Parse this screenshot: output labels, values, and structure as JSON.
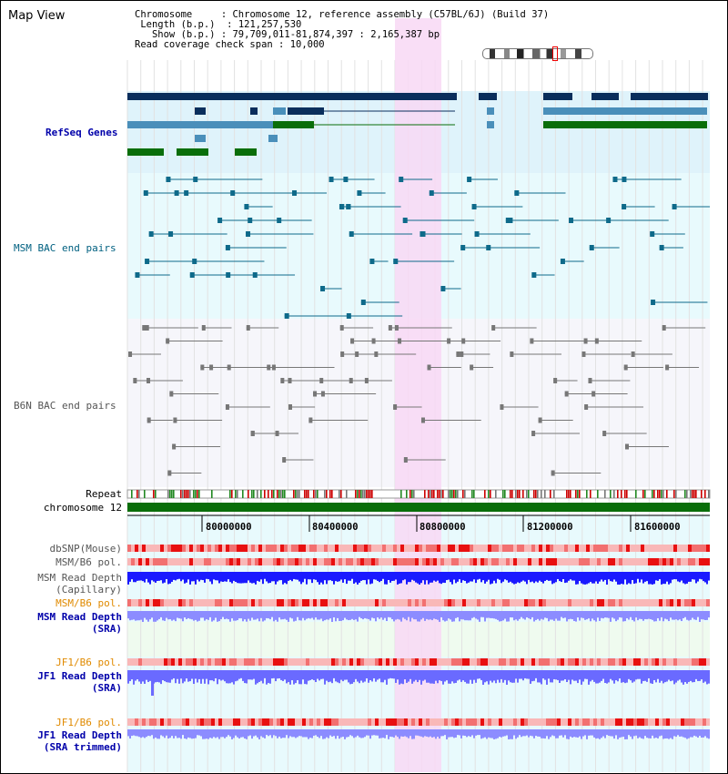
{
  "title": "Map View",
  "info": {
    "chromosome_key": "Chromosome",
    "chromosome_val": "Chromosome 12, reference assembly (C57BL/6J) (Build 37)",
    "length_key": "Length (b.p.)",
    "length_val": "121,257,530",
    "show_key": "Show (b.p.)",
    "show_val": "79,709,011-81,874,397 : 2,165,387 bp",
    "span_key": "Read coverage check span",
    "span_val": "10,000"
  },
  "tracks": {
    "refseq": "RefSeq Genes",
    "msm_bac": "MSM BAC end pairs",
    "b6n_bac": "B6N BAC end pairs",
    "repeat": "Repeat",
    "chromosome": "chromosome 12",
    "dbsnp": "dbSNP(Mouse)",
    "msm_b6_pol": "MSM/B6 pol.",
    "msm_depth_cap": "MSM Read Depth",
    "msm_depth_cap_sub": "(Capillary)",
    "msm_b6_pol2": "MSM/B6 pol.",
    "msm_depth_sra": "MSM Read Depth",
    "msm_depth_sra_sub": "(SRA)",
    "jf1_b6_pol": "JF1/B6 pol.",
    "jf1_depth_sra": "JF1 Read Depth",
    "jf1_depth_sra_sub": "(SRA)",
    "jf1_b6_pol2": "JF1/B6 pol.",
    "jf1_depth_trim": "JF1 Read Depth",
    "jf1_depth_trim_sub": "(SRA trimmed)"
  },
  "axis": {
    "ticks": [
      "80000000",
      "80400000",
      "80800000",
      "81200000",
      "81600000"
    ]
  },
  "colors": {
    "refseq_dark": "#0a2e5c",
    "refseq_mid": "#4a8fba",
    "refseq_green": "#0a6e0a",
    "msm_feature": "#0e6a8a",
    "b6n_feature": "#777777",
    "highlight": "#f8d8f4",
    "panel_bg": "#e8fafd",
    "depth_blue": "#1a1aff",
    "depth_light": "#8c8cff",
    "pol_red": "#ee2222"
  }
}
